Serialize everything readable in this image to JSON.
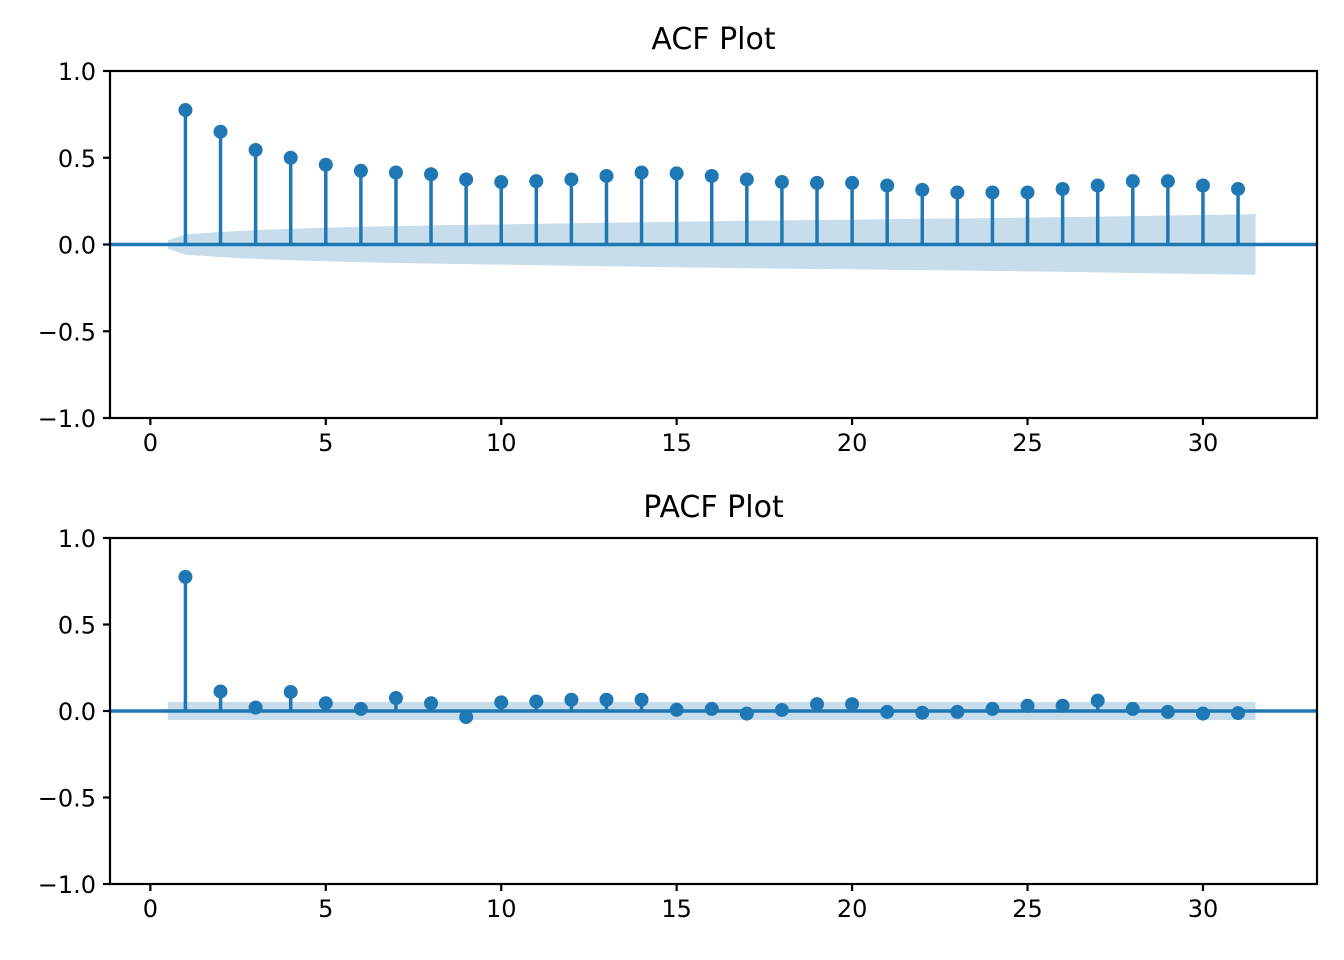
{
  "figure": {
    "background_color": "#ffffff",
    "text_color": "#000000"
  },
  "chart_data": [
    {
      "type": "stem",
      "title": "ACF Plot",
      "xlabel": "",
      "ylabel": "",
      "xlim": [
        -1.15,
        33.25
      ],
      "ylim": [
        -1.0,
        1.0
      ],
      "xticks": [
        0,
        5,
        10,
        15,
        20,
        25,
        30
      ],
      "xtick_labels": [
        "0",
        "5",
        "10",
        "15",
        "20",
        "25",
        "30"
      ],
      "yticks": [
        1.0,
        0.5,
        0.0,
        -0.5,
        -1.0
      ],
      "ytick_labels": [
        "1.0",
        "0.5",
        "0.0",
        "−0.5",
        "−1.0"
      ],
      "grid": false,
      "zero_line": 0.0,
      "x": [
        1,
        2,
        3,
        4,
        5,
        6,
        7,
        8,
        9,
        10,
        11,
        12,
        13,
        14,
        15,
        16,
        17,
        18,
        19,
        20,
        21,
        22,
        23,
        24,
        25,
        26,
        27,
        28,
        29,
        30,
        31
      ],
      "values": [
        0.775,
        0.65,
        0.545,
        0.5,
        0.46,
        0.425,
        0.415,
        0.405,
        0.375,
        0.36,
        0.365,
        0.375,
        0.395,
        0.415,
        0.41,
        0.395,
        0.375,
        0.36,
        0.355,
        0.355,
        0.34,
        0.315,
        0.3,
        0.3,
        0.3,
        0.32,
        0.34,
        0.365,
        0.365,
        0.34,
        0.32
      ],
      "confidence_band": {
        "symmetric": true,
        "x": [
          0.5,
          1,
          2,
          3,
          4,
          5,
          6,
          7,
          8,
          9,
          10,
          11,
          12,
          13,
          14,
          15,
          16,
          17,
          18,
          19,
          20,
          21,
          22,
          23,
          24,
          25,
          26,
          27,
          28,
          29,
          30,
          31,
          31.5
        ],
        "upper": [
          0.025,
          0.058,
          0.072,
          0.083,
          0.091,
          0.097,
          0.102,
          0.106,
          0.11,
          0.113,
          0.116,
          0.119,
          0.122,
          0.125,
          0.128,
          0.131,
          0.134,
          0.137,
          0.139,
          0.141,
          0.143,
          0.146,
          0.148,
          0.15,
          0.152,
          0.155,
          0.158,
          0.161,
          0.164,
          0.167,
          0.17,
          0.173,
          0.175
        ]
      },
      "colors": {
        "stem": "#1f77b4",
        "marker": "#1f77b4",
        "band": "rgba(31,119,180,0.25)",
        "zero_line": "#1f77b4",
        "spine": "#000000"
      }
    },
    {
      "type": "stem",
      "title": "PACF Plot",
      "xlabel": "",
      "ylabel": "",
      "xlim": [
        -1.15,
        33.25
      ],
      "ylim": [
        -1.0,
        1.0
      ],
      "xticks": [
        0,
        5,
        10,
        15,
        20,
        25,
        30
      ],
      "xtick_labels": [
        "0",
        "5",
        "10",
        "15",
        "20",
        "25",
        "30"
      ],
      "yticks": [
        1.0,
        0.5,
        0.0,
        -0.5,
        -1.0
      ],
      "ytick_labels": [
        "1.0",
        "0.5",
        "0.0",
        "−0.5",
        "−1.0"
      ],
      "grid": false,
      "zero_line": 0.0,
      "x": [
        1,
        2,
        3,
        4,
        5,
        6,
        7,
        8,
        9,
        10,
        11,
        12,
        13,
        14,
        15,
        16,
        17,
        18,
        19,
        20,
        21,
        22,
        23,
        24,
        25,
        26,
        27,
        28,
        29,
        30,
        31
      ],
      "values": [
        0.775,
        0.113,
        0.02,
        0.11,
        0.045,
        0.012,
        0.075,
        0.045,
        -0.035,
        0.05,
        0.055,
        0.065,
        0.065,
        0.065,
        0.007,
        0.012,
        -0.015,
        0.006,
        0.04,
        0.04,
        -0.005,
        -0.01,
        -0.005,
        0.012,
        0.03,
        0.03,
        0.06,
        0.012,
        -0.005,
        -0.015,
        -0.012
      ],
      "confidence_band": {
        "symmetric": true,
        "x": [
          0.5,
          31.5
        ],
        "upper": [
          0.052,
          0.052
        ]
      },
      "colors": {
        "stem": "#1f77b4",
        "marker": "#1f77b4",
        "band": "rgba(31,119,180,0.25)",
        "zero_line": "#1f77b4",
        "spine": "#000000"
      }
    }
  ]
}
